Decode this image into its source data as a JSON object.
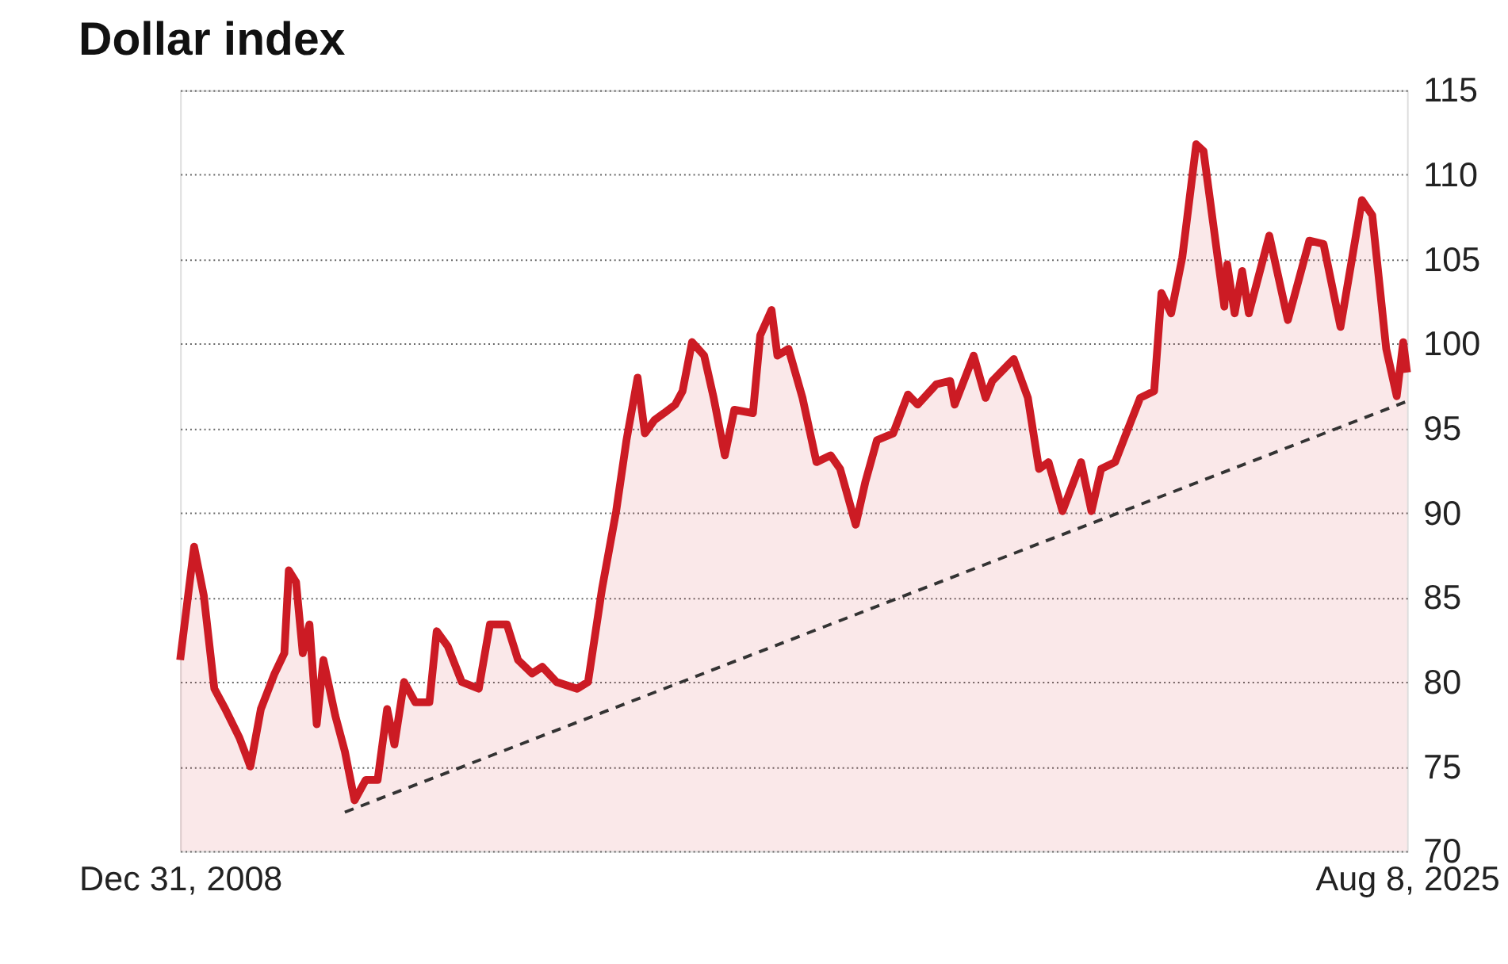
{
  "chart_data": {
    "type": "area",
    "title": "Dollar index",
    "xlim": [
      "2008-12-31",
      "2025-08-08"
    ],
    "xticks": [
      {
        "value": "2008-12-31",
        "label": "Dec 31, 2008"
      },
      {
        "value": "2025-08-08",
        "label": "Aug 8, 2025"
      }
    ],
    "ylim": [
      70,
      115
    ],
    "yticks": [
      70,
      75,
      80,
      85,
      90,
      95,
      100,
      105,
      110,
      115
    ],
    "grid": "y",
    "marker": "none",
    "series": [
      {
        "color": "#cc1b24",
        "line_style": "solid",
        "x": [
          "2008-12-31",
          "2009-03-10",
          "2009-04-27",
          "2009-06-18",
          "2009-08-11",
          "2009-10-20",
          "2009-12-13",
          "2010-02-03",
          "2010-04-12",
          "2010-05-30",
          "2010-06-21",
          "2010-07-27",
          "2010-08-29",
          "2010-10-01",
          "2010-11-06",
          "2010-12-09",
          "2011-02-06",
          "2011-03-25",
          "2011-05-12",
          "2011-07-06",
          "2011-09-03",
          "2011-10-20",
          "2011-11-25",
          "2012-01-12",
          "2012-03-07",
          "2012-05-16",
          "2012-06-21",
          "2012-08-15",
          "2012-10-23",
          "2013-01-15",
          "2013-03-11",
          "2013-06-03",
          "2013-07-28",
          "2013-10-05",
          "2013-11-25",
          "2014-02-03",
          "2014-05-16",
          "2014-07-09",
          "2014-09-16",
          "2014-11-25",
          "2015-01-15",
          "2015-03-11",
          "2015-04-16",
          "2015-06-03",
          "2015-07-20",
          "2015-09-13",
          "2015-10-19",
          "2015-12-05",
          "2016-02-03",
          "2016-03-21",
          "2016-05-15",
          "2016-07-01",
          "2016-10-01",
          "2016-11-06",
          "2017-01-01",
          "2017-01-30",
          "2017-03-26",
          "2017-06-03",
          "2017-08-11",
          "2017-10-20",
          "2017-12-06",
          "2018-02-21",
          "2018-04-09",
          "2018-06-06",
          "2018-08-25",
          "2018-11-06",
          "2018-12-24",
          "2019-03-26",
          "2019-06-03",
          "2019-06-25",
          "2019-09-27",
          "2019-11-25",
          "2019-12-28",
          "2020-04-12",
          "2020-06-21",
          "2020-08-15",
          "2020-10-01",
          "2020-12-09",
          "2021-03-11",
          "2021-05-01",
          "2021-06-18",
          "2021-08-26",
          "2021-10-20",
          "2021-12-28",
          "2022-03-07",
          "2022-04-12",
          "2022-05-30",
          "2022-07-24",
          "2022-10-01",
          "2022-11-06",
          "2023-01-15",
          "2023-02-17",
          "2023-03-03",
          "2023-04-09",
          "2023-05-16",
          "2023-06-18",
          "2023-09-27",
          "2023-12-28",
          "2024-04-12",
          "2024-06-21",
          "2024-09-13",
          "2024-12-28",
          "2025-02-17",
          "2025-04-27",
          "2025-06-18",
          "2025-07-20",
          "2025-08-08"
        ],
        "values": [
          81.3,
          88.0,
          85.1,
          79.6,
          78.4,
          76.7,
          75.0,
          78.4,
          80.5,
          81.7,
          86.6,
          85.9,
          81.7,
          83.4,
          77.5,
          81.3,
          78.0,
          75.9,
          73.0,
          74.2,
          74.2,
          78.4,
          76.3,
          80.0,
          78.8,
          78.8,
          83.0,
          82.1,
          80.0,
          79.6,
          83.4,
          83.4,
          81.3,
          80.5,
          80.9,
          80.0,
          79.6,
          80.0,
          85.5,
          90.1,
          94.3,
          98.0,
          94.7,
          95.5,
          95.9,
          96.4,
          97.2,
          100.1,
          99.3,
          96.8,
          93.4,
          96.1,
          95.9,
          100.5,
          102.0,
          99.3,
          99.7,
          96.8,
          93.0,
          93.4,
          92.6,
          89.3,
          91.8,
          94.3,
          94.7,
          97.0,
          96.4,
          97.6,
          97.8,
          96.4,
          99.3,
          96.8,
          97.8,
          99.1,
          96.8,
          92.6,
          93.0,
          90.1,
          93.0,
          90.1,
          92.6,
          93.0,
          94.7,
          96.8,
          97.2,
          103.0,
          101.8,
          105.1,
          111.8,
          111.4,
          105.1,
          102.2,
          104.7,
          101.8,
          104.3,
          101.8,
          106.4,
          101.4,
          106.1,
          105.9,
          101.0,
          108.5,
          107.6,
          99.7,
          96.9,
          100.1,
          98.3
        ]
      },
      {
        "type": "line",
        "color": "#333333",
        "line_style": "dashed",
        "x": [
          "2011-03-25",
          "2025-08-08"
        ],
        "values": [
          72.3,
          96.6
        ]
      }
    ]
  }
}
